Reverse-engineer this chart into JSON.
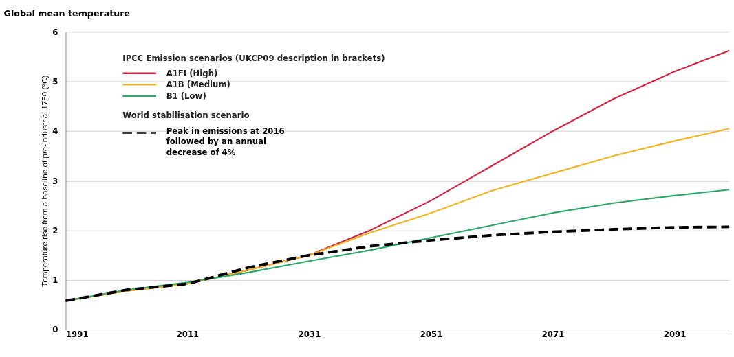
{
  "chart_data": {
    "type": "line",
    "title": "Global mean temperature",
    "ylabel": "Temperature rise from a baseline of pre-industrial 1750 (°C)",
    "legend_title": "IPCC Emission scenarios (UKCP09 description in brackets)",
    "annotations": [
      "World stabilisation scenario"
    ],
    "x": [
      1991,
      2001,
      2011,
      2021,
      2031,
      2041,
      2051,
      2061,
      2071,
      2081,
      2091,
      2100
    ],
    "series": [
      {
        "name": "A1FI  (High)",
        "color": "#d0263f",
        "values": [
          0.58,
          0.78,
          0.92,
          1.2,
          1.5,
          2.0,
          2.6,
          3.3,
          4.0,
          4.65,
          5.2,
          5.62
        ]
      },
      {
        "name": "A1B  (Medium)",
        "color": "#f0b323",
        "values": [
          0.58,
          0.78,
          0.92,
          1.2,
          1.5,
          1.95,
          2.35,
          2.8,
          3.15,
          3.5,
          3.8,
          4.05
        ]
      },
      {
        "name": "B1     (Low)",
        "color": "#2ea86a",
        "values": [
          0.58,
          0.8,
          0.95,
          1.15,
          1.38,
          1.6,
          1.85,
          2.1,
          2.35,
          2.55,
          2.7,
          2.82
        ]
      },
      {
        "name": "Peak in emissions at 2016 followed by an annual decrease of 4%",
        "color": "#000000",
        "line_style": "dashed",
        "values": [
          0.58,
          0.8,
          0.92,
          1.25,
          1.5,
          1.68,
          1.8,
          1.9,
          1.97,
          2.02,
          2.06,
          2.07
        ]
      }
    ],
    "xlim": [
      1991,
      2100
    ],
    "xticks": [
      1991,
      2011,
      2031,
      2051,
      2071,
      2091
    ],
    "ylim": [
      0,
      6
    ],
    "yticks": [
      0,
      1,
      2,
      3,
      4,
      5,
      6
    ],
    "grid": "y",
    "legend": "top left",
    "marker": "none"
  }
}
